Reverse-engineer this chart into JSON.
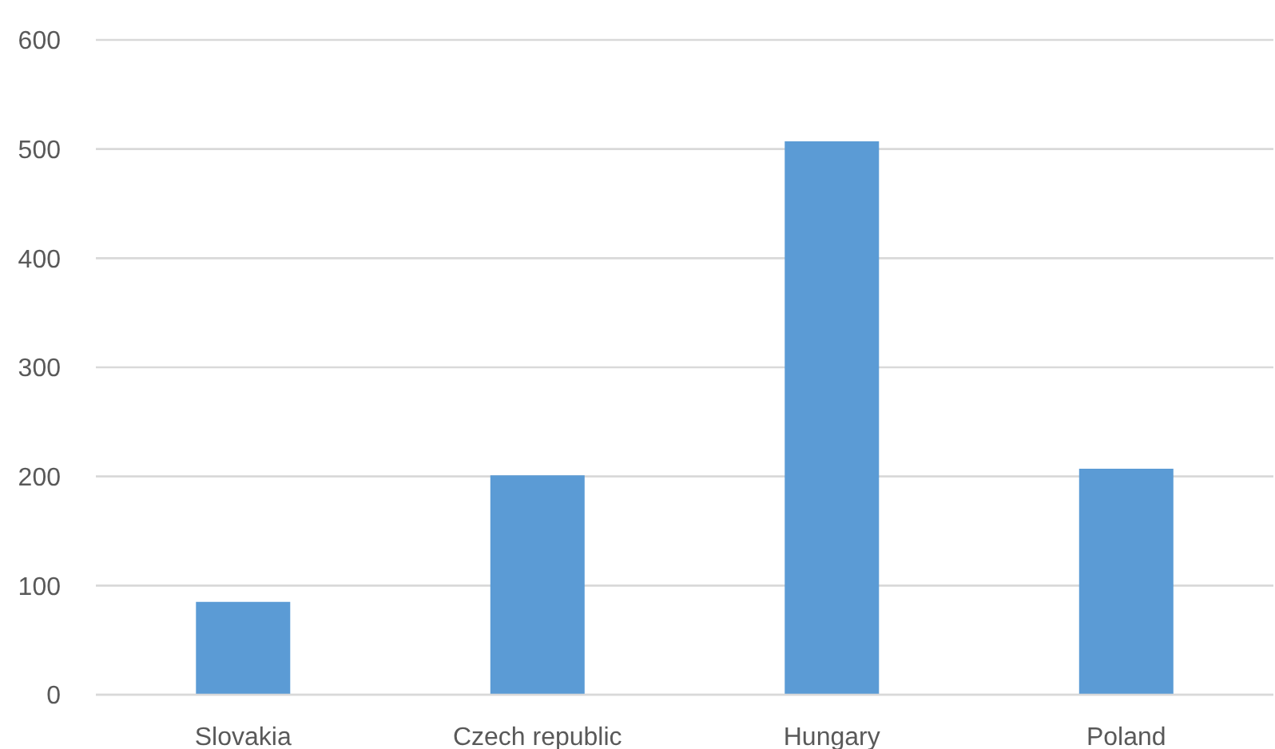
{
  "chart_data": {
    "type": "bar",
    "categories": [
      "Slovakia",
      "Czech republic",
      "Hungary",
      "Poland"
    ],
    "values": [
      85,
      201,
      507,
      207
    ],
    "color": "#5b9bd5",
    "ylim": [
      0,
      600
    ],
    "yticks": [
      0,
      100,
      200,
      300,
      400,
      500,
      600
    ],
    "grid": "y"
  }
}
